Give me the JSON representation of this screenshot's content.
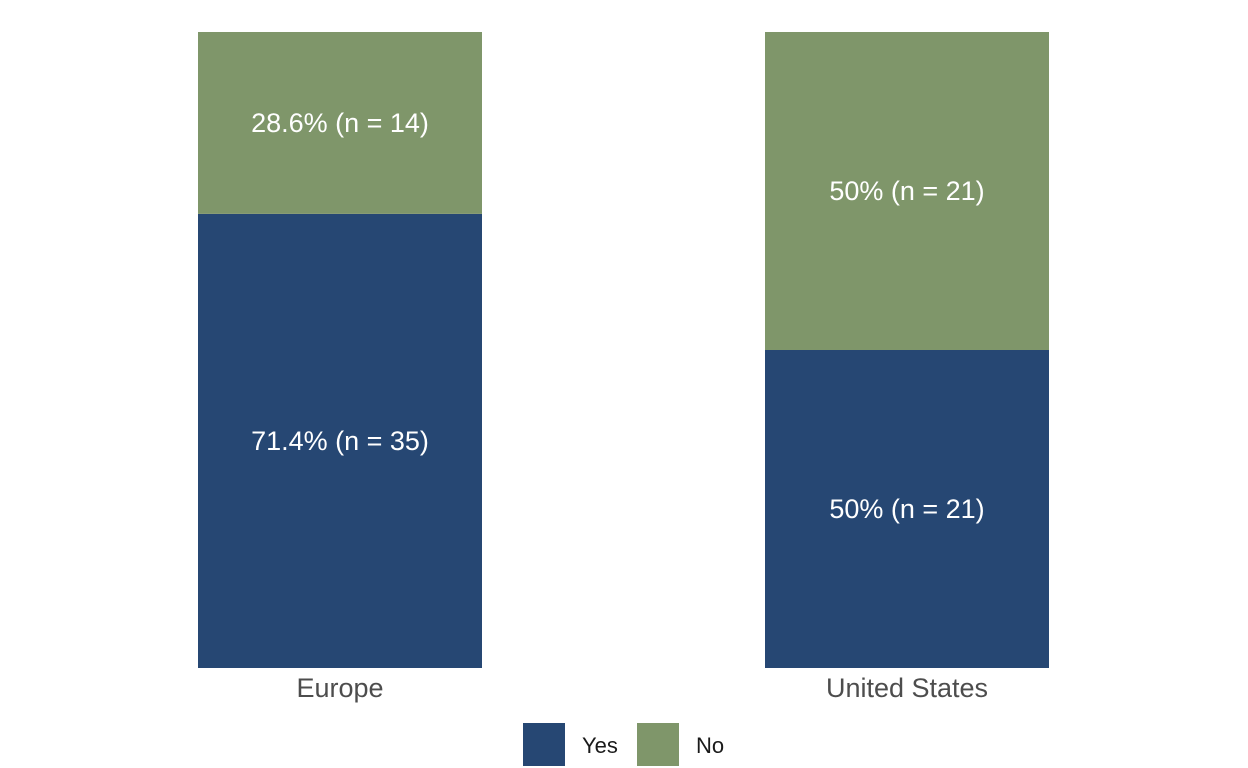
{
  "chart_data": {
    "type": "bar",
    "stacked": true,
    "percent": true,
    "categories": [
      "Europe",
      "United States"
    ],
    "series": [
      {
        "name": "Yes",
        "color": "#264773",
        "values": [
          71.4,
          50
        ],
        "counts": [
          35,
          21
        ],
        "labels": [
          "71.4% (n = 35)",
          "50% (n = 21)"
        ]
      },
      {
        "name": "No",
        "color": "#7f966a",
        "values": [
          28.6,
          50
        ],
        "counts": [
          14,
          21
        ],
        "labels": [
          "28.6% (n = 14)",
          "50% (n = 21)"
        ]
      }
    ],
    "ylim": [
      0,
      100
    ],
    "grid": false,
    "legend": {
      "position": "bottom",
      "entries": [
        "Yes",
        "No"
      ]
    }
  }
}
